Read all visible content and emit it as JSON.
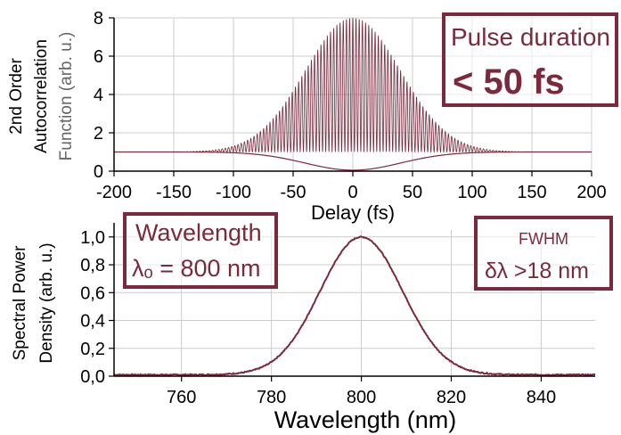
{
  "chart_data": [
    {
      "type": "line",
      "ylabel_lines": [
        "2nd Order",
        "Autocorrelation",
        "Function (arb. u.)"
      ],
      "xlabel": "Delay (fs)",
      "xlim": [
        -200,
        200
      ],
      "ylim": [
        0,
        8
      ],
      "xticks": [
        -200,
        -150,
        -100,
        -50,
        0,
        50,
        100,
        150,
        200
      ],
      "xtick_labels": [
        "-200",
        "-150",
        "-100",
        "-50",
        "0",
        "50",
        "100",
        "150",
        "200"
      ],
      "yticks": [
        0,
        2,
        4,
        6,
        8
      ],
      "ytick_labels": [
        "0",
        "2",
        "4",
        "6",
        "8"
      ],
      "series": [
        {
          "description_points": {
            "x": [
              -200,
              -100,
              -50,
              -25,
              0,
              25,
              50,
              100,
              200
            ],
            "y_peak": [
              1,
              1.3,
              4.2,
              6.9,
              8,
              6.9,
              4.2,
              1.3,
              1
            ]
          }
        }
      ],
      "grid": true,
      "color": "#7a2a3c"
    },
    {
      "type": "line",
      "ylabel_lines": [
        "Spectral Power",
        "Density (arb. u.)"
      ],
      "xlabel": "Wavelength (nm)",
      "xlim": [
        745,
        852
      ],
      "ylim": [
        0,
        1.05
      ],
      "xticks": [
        760,
        780,
        800,
        820,
        840
      ],
      "xtick_labels": [
        "760",
        "780",
        "800",
        "820",
        "840"
      ],
      "yticks": [
        0,
        0.2,
        0.4,
        0.6,
        0.8,
        1.0
      ],
      "ytick_labels": [
        "0,0",
        "0,2",
        "0,4",
        "0,6",
        "0,8",
        "1,0"
      ],
      "series": [
        {
          "x": [
            745,
            770,
            775,
            780,
            785,
            790,
            795,
            800,
            805,
            810,
            815,
            820,
            825,
            830,
            852
          ],
          "y": [
            0.01,
            0.01,
            0.04,
            0.12,
            0.29,
            0.53,
            0.82,
            1.0,
            0.83,
            0.55,
            0.3,
            0.13,
            0.05,
            0.01,
            0.01
          ]
        }
      ],
      "grid": true,
      "color": "#7a2a3c"
    }
  ],
  "annotations": {
    "pulse": {
      "line1": "Pulse duration",
      "line2": "< 50 fs"
    },
    "wavelength": {
      "line1": "Wavelength",
      "line2": "λₒ = 800 nm"
    },
    "fwhm": {
      "line1": "FWHM",
      "line2": "δλ >18 nm"
    }
  },
  "colors": {
    "curve": "#7a2a3c",
    "box": "#7a2a3c",
    "grid": "#cccccc",
    "axis": "#000000"
  }
}
